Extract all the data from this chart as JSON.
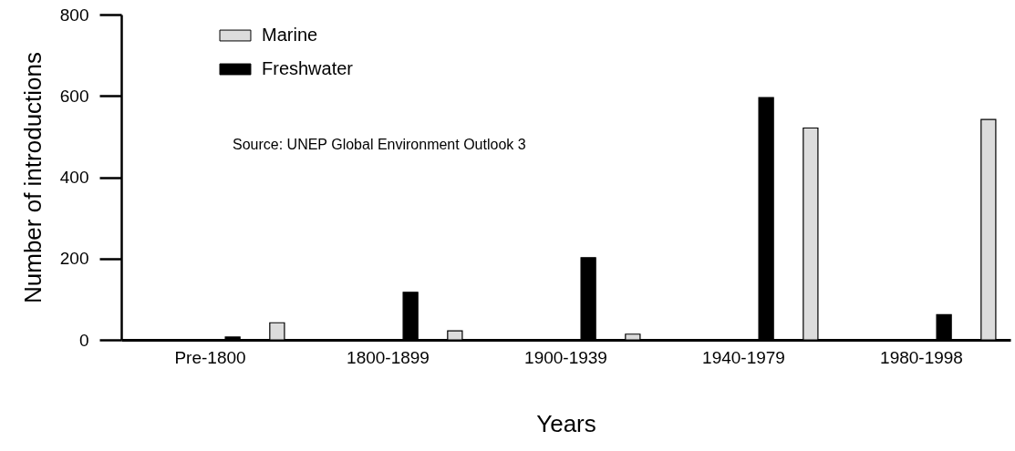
{
  "chart_data": {
    "type": "bar",
    "xlabel": "Years",
    "ylabel": "Number of introductions",
    "categories": [
      "Pre-1800",
      "1800-1899",
      "1900-1939",
      "1940-1979",
      "1980-1998"
    ],
    "series": [
      {
        "name": "Marine",
        "color": "#dcdcdc",
        "values": [
          42,
          22,
          14,
          521,
          542
        ]
      },
      {
        "name": "Freshwater",
        "color": "#000000",
        "values": [
          7,
          117,
          202,
          596,
          62
        ]
      }
    ],
    "ylim": [
      0,
      800
    ],
    "yticks": [
      0,
      200,
      400,
      600,
      800
    ],
    "grid": false,
    "legend": "top left",
    "annotations": [
      "Source: UNEP Global Environment Outlook 3"
    ]
  }
}
